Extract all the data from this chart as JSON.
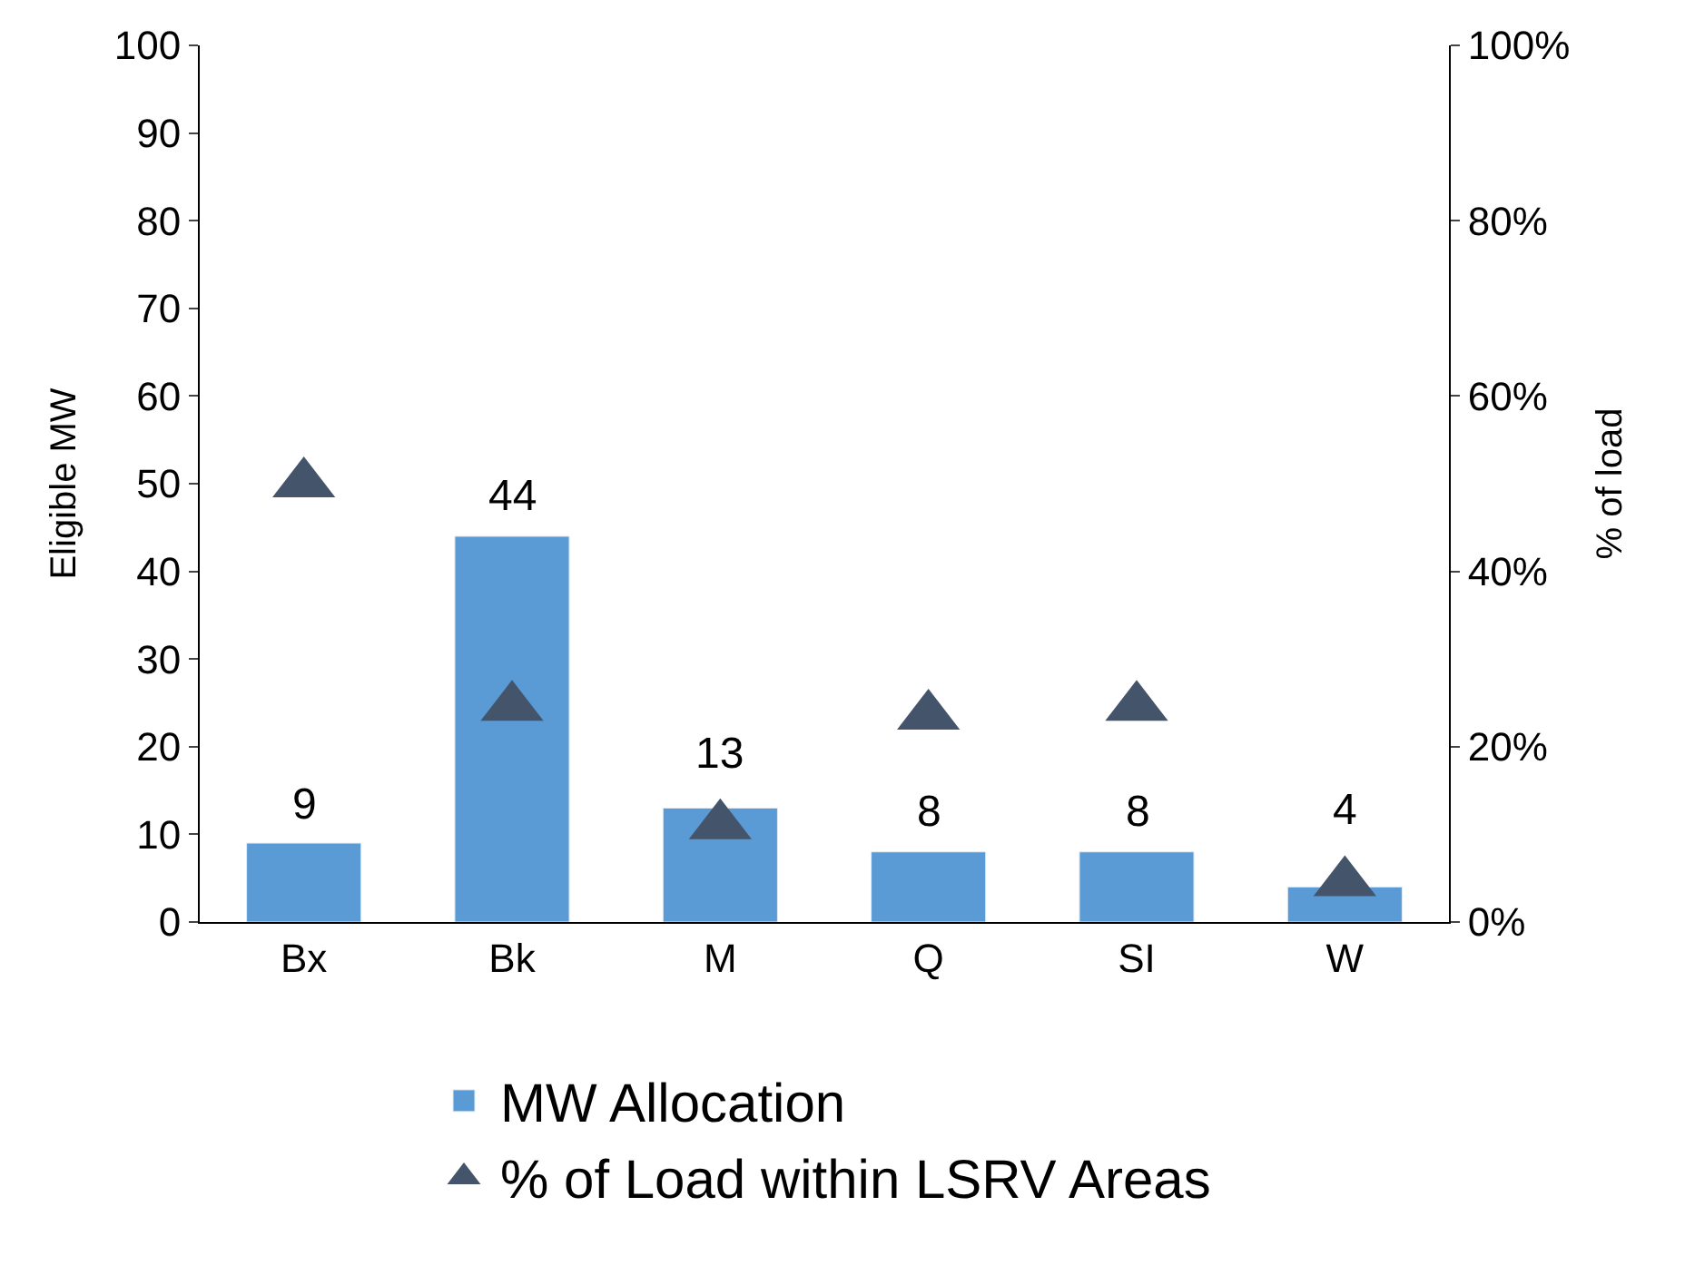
{
  "chart_data": {
    "type": "bar",
    "ylabel": "Eligible MW",
    "y2label": "% of load",
    "categories": [
      "Bx",
      "Bk",
      "M",
      "Q",
      "SI",
      "W"
    ],
    "series": [
      {
        "name": "MW Allocation",
        "color": "#5b9bd5",
        "values": [
          9,
          44,
          13,
          8,
          8,
          4
        ],
        "value_labels": [
          "9",
          "44",
          "13",
          "8",
          "8",
          "4"
        ]
      },
      {
        "name": "% of Load within LSRV Areas",
        "type": "scatter",
        "axis": "y2",
        "marker": "triangle",
        "color": "#44546a",
        "values": [
          50,
          24.5,
          11,
          23.5,
          24.5,
          4.5
        ]
      }
    ],
    "ylim": [
      0,
      100
    ],
    "yticks": [
      0,
      10,
      20,
      30,
      40,
      50,
      60,
      70,
      80,
      90,
      100
    ],
    "y2lim": [
      0,
      100
    ],
    "y2ticks": [
      {
        "value": 0,
        "label": "0%"
      },
      {
        "value": 20,
        "label": "20%"
      },
      {
        "value": 40,
        "label": "40%"
      },
      {
        "value": 60,
        "label": "60%"
      },
      {
        "value": 80,
        "label": "80%"
      },
      {
        "value": 100,
        "label": "100%"
      }
    ],
    "legend": "bottom"
  }
}
